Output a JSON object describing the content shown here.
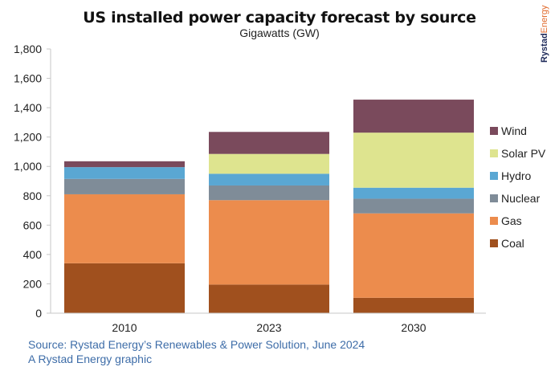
{
  "brand": {
    "part1": "Rystad",
    "part2": "Energy"
  },
  "footer": {
    "source": "Source: Rystad Energy’s Renewables & Power Solution, June 2024",
    "credit": "A Rystad Energy graphic"
  },
  "chart_data": {
    "type": "bar",
    "stacked": true,
    "title": "US installed power capacity forecast by source",
    "subtitle": "Gigawatts (GW)",
    "xlabel": "",
    "ylabel": "",
    "ylim": [
      0,
      1800
    ],
    "yticks": [
      0,
      200,
      400,
      600,
      800,
      1000,
      1200,
      1400,
      1600,
      1800
    ],
    "ytick_labels": [
      "0",
      "200",
      "400",
      "600",
      "800",
      "1,000",
      "1,200",
      "1,400",
      "1,600",
      "1,800"
    ],
    "grid": false,
    "legend_position": "right",
    "categories": [
      "2010",
      "2023",
      "2030"
    ],
    "series": [
      {
        "name": "Coal",
        "color": "#a0501e",
        "values": [
          340,
          195,
          105
        ]
      },
      {
        "name": "Gas",
        "color": "#ec8c4d",
        "values": [
          470,
          575,
          575
        ]
      },
      {
        "name": "Nuclear",
        "color": "#7f8c98",
        "values": [
          105,
          100,
          100
        ]
      },
      {
        "name": "Hydro",
        "color": "#5aa7d3",
        "values": [
          80,
          80,
          75
        ]
      },
      {
        "name": "Solar PV",
        "color": "#dee48f",
        "values": [
          0,
          135,
          375
        ]
      },
      {
        "name": "Wind",
        "color": "#7a4a5c",
        "values": [
          40,
          150,
          225
        ]
      }
    ]
  }
}
